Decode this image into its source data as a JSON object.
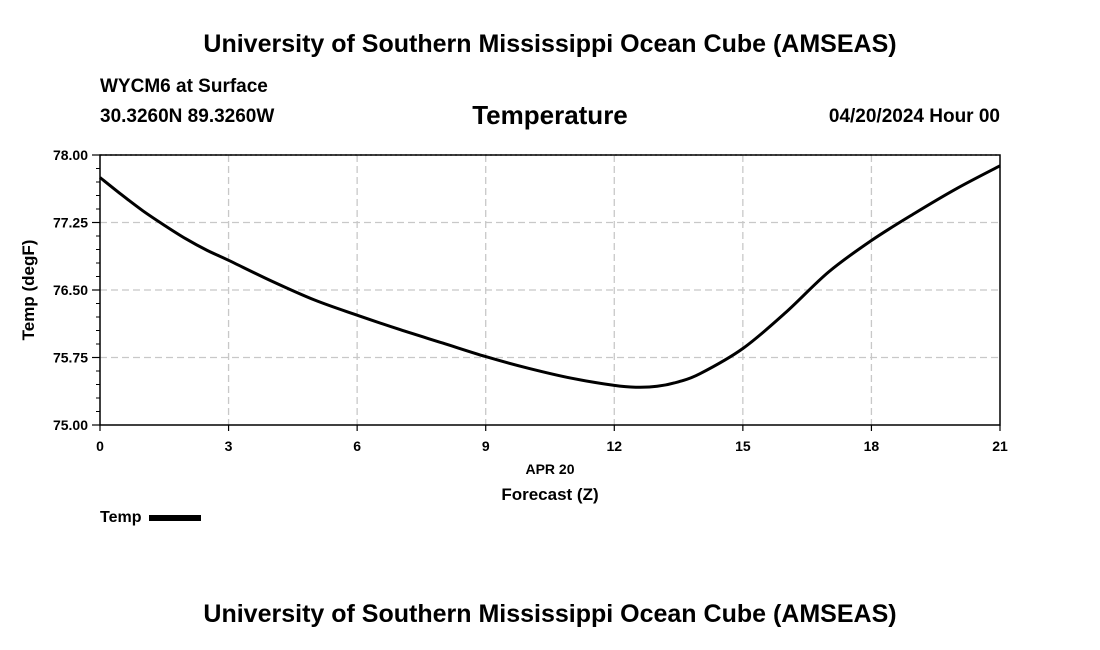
{
  "header": {
    "title": "University of Southern Mississippi Ocean Cube (AMSEAS)",
    "station": "WYCM6 at Surface",
    "coords": "30.3260N  89.3260W",
    "parameter": "Temperature",
    "timestamp": "04/20/2024 Hour 00"
  },
  "footer": {
    "title": "University of Southern Mississippi Ocean Cube (AMSEAS)"
  },
  "legend": {
    "label": "Temp"
  },
  "chart_data": {
    "type": "line",
    "title": "Temperature",
    "xlabel": "Forecast (Z)",
    "date_label": "APR 20",
    "ylabel": "Temp (degF)",
    "xlim": [
      0,
      21
    ],
    "ylim": [
      75.0,
      78.0
    ],
    "x_ticks": [
      0,
      3,
      6,
      9,
      12,
      15,
      18,
      21
    ],
    "y_ticks": [
      "75.00",
      "75.75",
      "76.50",
      "77.25",
      "78.00"
    ],
    "grid": true,
    "series": [
      {
        "name": "Temp",
        "color": "#000000",
        "x": [
          0,
          0.5,
          1,
          1.5,
          2,
          2.5,
          3,
          4,
          5,
          6,
          7,
          8,
          9,
          10,
          11,
          12,
          12.5,
          13,
          13.5,
          14,
          15,
          16,
          17,
          18,
          19,
          20,
          21
        ],
        "y": [
          77.75,
          77.56,
          77.38,
          77.22,
          77.07,
          76.94,
          76.83,
          76.6,
          76.39,
          76.22,
          76.06,
          75.91,
          75.76,
          75.63,
          75.52,
          75.44,
          75.42,
          75.43,
          75.48,
          75.57,
          75.85,
          76.25,
          76.7,
          77.05,
          77.35,
          77.63,
          77.88
        ]
      }
    ]
  }
}
